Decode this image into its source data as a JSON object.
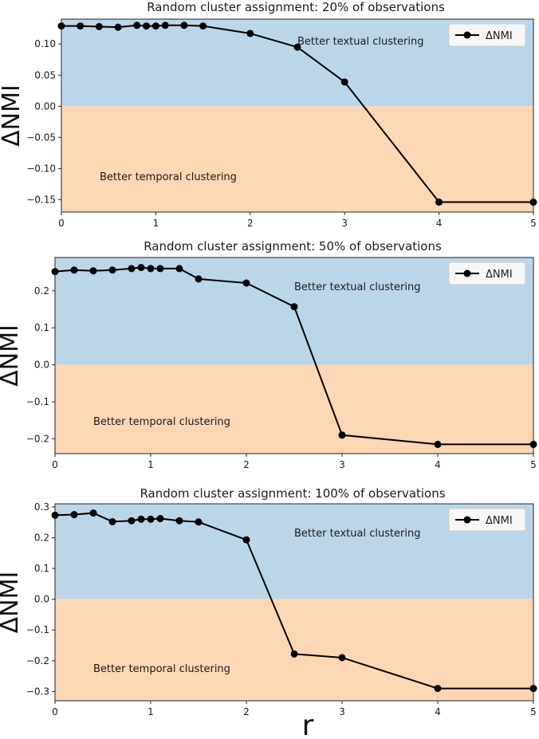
{
  "figure": {
    "xlabel": "r",
    "ylabel": "ΔNMI"
  },
  "colors": {
    "positive_region": "#bcd6e9",
    "negative_region": "#fdd7b4",
    "line": "#000000",
    "marker": "#000000"
  },
  "chart_data": [
    {
      "type": "line",
      "title": "Random cluster assignment: 20% of observations",
      "xlabel": "",
      "ylabel": "ΔNMI",
      "xlim": [
        0,
        5
      ],
      "ylim": [
        -0.17,
        0.14
      ],
      "xticks": [
        0,
        1,
        2,
        3,
        4,
        5
      ],
      "xtick_labels": [
        "0",
        "1",
        "2",
        "3",
        "4",
        "5"
      ],
      "yticks": [
        0.1,
        0.05,
        0.0,
        -0.05,
        -0.1,
        -0.15
      ],
      "ytick_labels": [
        "0.10",
        "0.05",
        "0.00",
        "−0.05",
        "−0.10",
        "−0.15"
      ],
      "regions": {
        "above_zero": "Better textual clustering",
        "below_zero": "Better temporal clustering"
      },
      "legend": "top-right",
      "series": [
        {
          "name": "ΔNMI",
          "x": [
            0,
            0.2,
            0.4,
            0.6,
            0.8,
            0.9,
            1.0,
            1.1,
            1.3,
            1.5,
            2.0,
            2.5,
            3.0,
            4.0,
            5.0
          ],
          "y": [
            0.129,
            0.129,
            0.128,
            0.127,
            0.13,
            0.129,
            0.129,
            0.13,
            0.13,
            0.129,
            0.117,
            0.095,
            0.039,
            -0.154,
            -0.154
          ]
        }
      ]
    },
    {
      "type": "line",
      "title": "Random cluster assignment: 50% of observations",
      "xlabel": "",
      "ylabel": "ΔNMI",
      "xlim": [
        0,
        5
      ],
      "ylim": [
        -0.24,
        0.29
      ],
      "xticks": [
        0,
        1,
        2,
        3,
        4,
        5
      ],
      "xtick_labels": [
        "0",
        "1",
        "2",
        "3",
        "4",
        "5"
      ],
      "yticks": [
        0.2,
        0.1,
        0.0,
        -0.1,
        -0.2
      ],
      "ytick_labels": [
        "0.2",
        "0.1",
        "0.0",
        "−0.1",
        "−0.2"
      ],
      "regions": {
        "above_zero": "Better textual clustering",
        "below_zero": "Better temporal clustering"
      },
      "legend": "top-right",
      "series": [
        {
          "name": "ΔNMI",
          "x": [
            0,
            0.2,
            0.4,
            0.6,
            0.8,
            0.9,
            1.0,
            1.1,
            1.3,
            1.5,
            2.0,
            2.5,
            3.0,
            4.0,
            5.0
          ],
          "y": [
            0.252,
            0.256,
            0.254,
            0.256,
            0.26,
            0.263,
            0.26,
            0.26,
            0.26,
            0.232,
            0.221,
            0.157,
            -0.19,
            -0.215,
            -0.215
          ]
        }
      ]
    },
    {
      "type": "line",
      "title": "Random cluster assignment: 100% of observations",
      "xlabel": "r",
      "ylabel": "ΔNMI",
      "xlim": [
        0,
        5
      ],
      "ylim": [
        -0.33,
        0.31
      ],
      "xticks": [
        0,
        1,
        2,
        3,
        4,
        5
      ],
      "xtick_labels": [
        "0",
        "1",
        "2",
        "3",
        "4",
        "5"
      ],
      "yticks": [
        0.3,
        0.2,
        0.1,
        0.0,
        -0.1,
        -0.2,
        -0.3
      ],
      "ytick_labels": [
        "0.3",
        "0.2",
        "0.1",
        "0.0",
        "−0.1",
        "−0.2",
        "−0.3"
      ],
      "regions": {
        "above_zero": "Better textual clustering",
        "below_zero": "Better temporal clustering"
      },
      "legend": "top-right",
      "series": [
        {
          "name": "ΔNMI",
          "x": [
            0,
            0.2,
            0.4,
            0.6,
            0.8,
            0.9,
            1.0,
            1.1,
            1.3,
            1.5,
            2.0,
            2.5,
            3.0,
            4.0,
            5.0
          ],
          "y": [
            0.273,
            0.275,
            0.28,
            0.252,
            0.255,
            0.26,
            0.26,
            0.262,
            0.255,
            0.251,
            0.193,
            -0.178,
            -0.19,
            -0.29,
            -0.29
          ]
        }
      ]
    }
  ]
}
